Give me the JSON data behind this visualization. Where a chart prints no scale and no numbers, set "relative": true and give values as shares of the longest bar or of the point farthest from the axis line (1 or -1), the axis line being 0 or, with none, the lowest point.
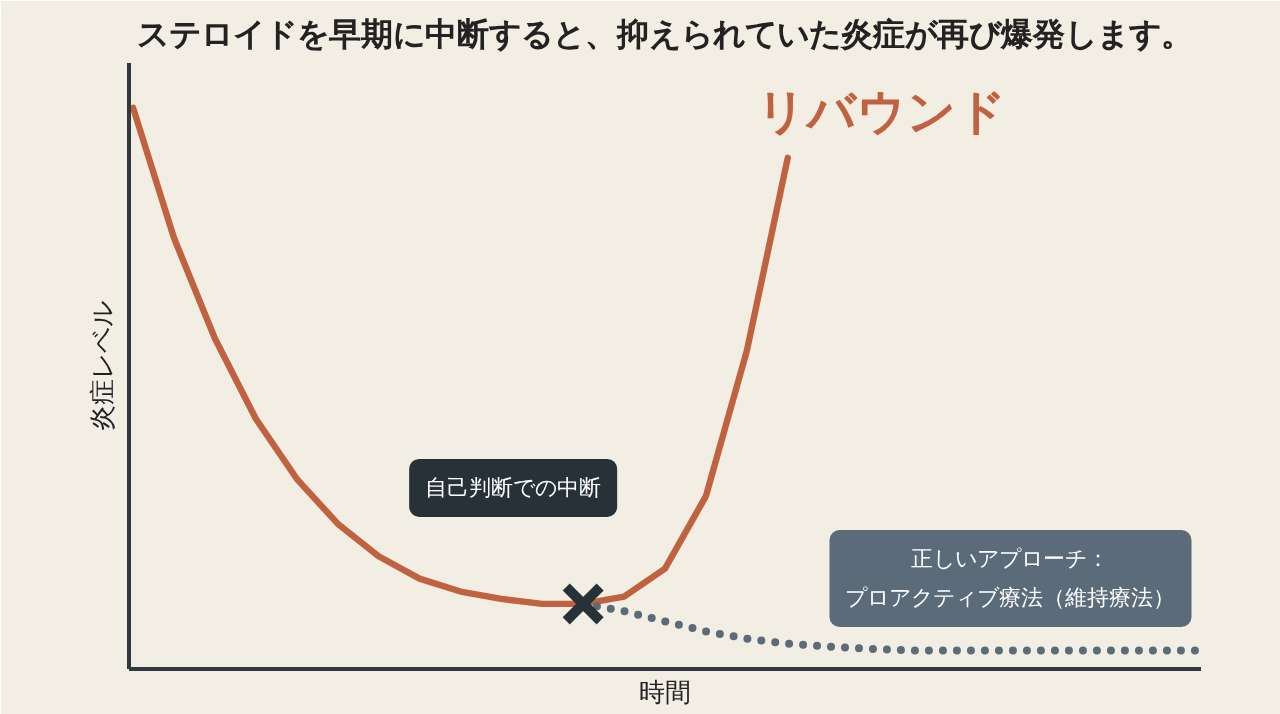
{
  "chart_data": {
    "type": "line",
    "title": "ステロイドを早期に中断すると、抑えられていた炎症が再び爆発します。",
    "xlabel": "時間",
    "ylabel": "炎症レベル",
    "relative": true,
    "categories": [
      null,
      null,
      null,
      null,
      null,
      null,
      null,
      null,
      null,
      null,
      null,
      null,
      null,
      null,
      null,
      null,
      null,
      null,
      null,
      null,
      null,
      null,
      null,
      null,
      null,
      null,
      null
    ],
    "series": [
      {
        "name": "リバウンド",
        "color": "#c0623f",
        "line_style": "solid",
        "values": [
          1,
          0.768,
          0.589,
          0.446,
          0.339,
          0.259,
          0.201,
          0.161,
          0.138,
          0.125,
          0.116,
          0.116,
          0.129,
          0.179,
          0.308,
          0.567,
          0.911,
          null,
          null,
          null,
          null,
          null,
          null,
          null,
          null,
          null,
          null
        ]
      },
      {
        "name": "正しいアプローチ：プロアクティブ療法（維持療法）",
        "color": "#5b6b7a",
        "line_style": "dotted",
        "values": [
          null,
          null,
          null,
          null,
          null,
          null,
          null,
          null,
          null,
          null,
          null,
          0.116,
          0.103,
          0.085,
          0.067,
          0.054,
          0.045,
          0.04,
          0.036,
          0.033,
          0.033,
          0.033,
          0.033,
          0.033,
          0.033,
          0.033,
          0.033
        ]
      }
    ],
    "annotations": [
      "自己判断での中断"
    ]
  }
}
